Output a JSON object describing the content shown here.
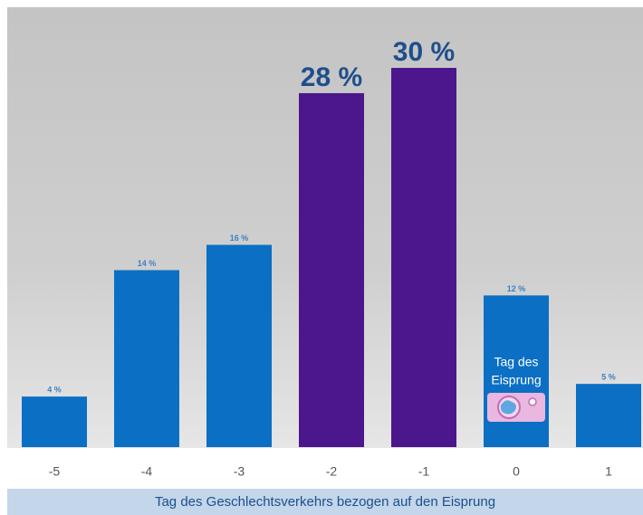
{
  "chart_data": {
    "type": "bar",
    "categories": [
      "-5",
      "-4",
      "-3",
      "-2",
      "-1",
      "0",
      "1"
    ],
    "values": [
      4,
      14,
      16,
      28,
      30,
      12,
      5
    ],
    "value_labels": [
      "4 %",
      "14 %",
      "16 %",
      "28 %",
      "30 %",
      "12 %",
      "5 %"
    ],
    "colors": [
      "#0b6fc4",
      "#0b6fc4",
      "#0b6fc4",
      "#4c178c",
      "#4c178c",
      "#0b6fc4",
      "#0b6fc4"
    ],
    "xlabel": "Tag des Geschlechtsverkehrs bezogen auf den Eisprung",
    "annotation": [
      "Tag des",
      "Eisprung"
    ]
  }
}
